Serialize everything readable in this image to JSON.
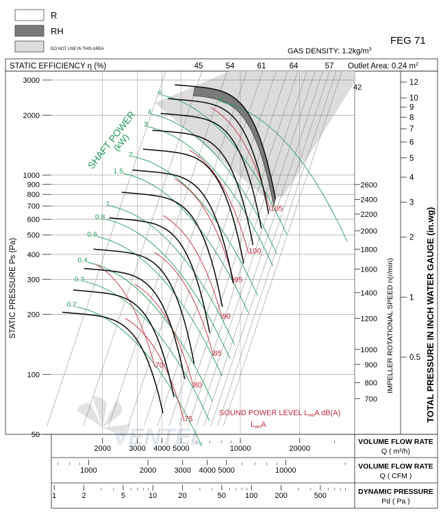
{
  "legend": {
    "r_label": "R",
    "rh_label": "RH",
    "do_not_use_label": "DO NOT USE IN THIS AREA"
  },
  "header": {
    "model": "FEG 71",
    "gas_density": "GAS DENSITY: 1.2kg/m",
    "gas_density_sup": "3",
    "static_efficiency": "STATIC EFFICIENCY η (%)",
    "outlet_area": "Outlet Area: 0.24 m",
    "outlet_area_sup": "2"
  },
  "labels": {
    "shaft_power": "SHAFT POWER",
    "shaft_power_unit": "(kW)",
    "left_axis": "STATIC PRESSURE Ps (Pa)",
    "speed_axis": "IMPELLER ROTATIONAL SPEED n(r/min)",
    "right_axis": "TOTAL PRESSURE IN INCH WATER GAUGE  (in.wg)",
    "sound_power_main": "SOUND POWER LEVEL L",
    "sound_power_sub": "wo",
    "sound_power_end": "A dB(A)",
    "lwa_main": "L",
    "lwa_sub": "wo",
    "lwa_end": "A",
    "watermark": "VENTEL"
  },
  "bottom_scales": {
    "m3h_title": "VOLUME FLOW RATE",
    "m3h_unit": "Q ( m³/h)",
    "cfm_title": "VOLUME FLOW RATE",
    "cfm_unit": "Q ( CFM )",
    "pd_title": "DYNAMIC PRESSURE",
    "pd_unit": "Pd ( Pa )"
  },
  "colors": {
    "curve": "#111111",
    "power": "#1f9a5a",
    "sound": "#c0283a",
    "do_not_use": "#dcdcdc",
    "rh_fill": "#7a7a7a",
    "grid": "#777777"
  },
  "chart_data": {
    "type": "line",
    "x_scale": "log",
    "y_scale": "log",
    "xlim": [
      1100,
      38000
    ],
    "ylim": [
      50,
      3500
    ],
    "flow_m3h_ticks": [
      2000,
      3000,
      4000,
      5000,
      10000,
      20000
    ],
    "flow_m3h_tick_labels": [
      "2000",
      "3000",
      "4000",
      "5000",
      "10000",
      "20000"
    ],
    "flow_cfm_ticks": [
      1000,
      2000,
      3000,
      4000,
      5000,
      10000
    ],
    "flow_cfm_tick_labels": [
      "1000",
      "2000",
      "3000",
      "4000",
      "5000",
      "10000"
    ],
    "dyn_pressure_ticks": [
      1,
      2,
      5,
      10,
      20,
      50,
      100,
      200,
      500
    ],
    "dyn_pressure_tick_labels": [
      "1",
      "2",
      "5",
      "10",
      "20",
      "50",
      "100",
      "200",
      "500"
    ],
    "static_pressure_ticks": [
      50,
      100,
      200,
      300,
      400,
      500,
      600,
      700,
      800,
      900,
      1000,
      2000,
      3000
    ],
    "static_pressure_tick_labels": [
      "50",
      "100",
      "200",
      "300",
      "400",
      "500",
      "600",
      "700",
      "800",
      "900",
      "1000",
      "2000",
      "3000"
    ],
    "inwg_ticks": [
      0.5,
      1,
      2,
      3,
      4,
      5,
      6,
      7,
      8,
      9,
      10,
      12
    ],
    "inwg_tick_labels": [
      "0.5",
      "1",
      "2",
      "3",
      "4",
      "5",
      "6",
      "7",
      "8",
      "9",
      "10",
      "12"
    ],
    "efficiency_top_labels": [
      "45",
      "54",
      "61",
      "64",
      "57"
    ],
    "efficiency_side_label": "42",
    "speed_rpm": [
      700,
      800,
      900,
      1000,
      1200,
      1400,
      1600,
      1800,
      2000,
      2200,
      2400,
      2600
    ],
    "speed_labels": [
      "700",
      "800",
      "900",
      "1000",
      "1200",
      "1400",
      "1600",
      "1800",
      "2000",
      "2200",
      "2400",
      "2600"
    ],
    "curve_end_pressure_pa": [
      64,
      77,
      95,
      113,
      162,
      218,
      286,
      360,
      445,
      540,
      640,
      760
    ],
    "curve_base_pressure": [
      205,
      265,
      340,
      425,
      610,
      820,
      1060,
      1350,
      1680,
      2040,
      2420,
      2840
    ],
    "sound_power_labels": [
      "70",
      "75",
      "80",
      "85",
      "90",
      "95",
      "100",
      "105"
    ],
    "sound_power_label_points": [
      [
        3700,
        108
      ],
      [
        5200,
        58
      ],
      [
        5800,
        86
      ],
      [
        7300,
        124
      ],
      [
        8100,
        190
      ],
      [
        9300,
        290
      ],
      [
        11000,
        405
      ],
      [
        14200,
        660
      ]
    ],
    "shaft_power_labels": [
      "0.2",
      "0.3",
      "0.4",
      "0.6",
      "0.8",
      "1",
      "1.5",
      "2",
      "3",
      "4",
      "6",
      "8"
    ],
    "shaft_power_label_points": [
      [
        1480,
        218
      ],
      [
        1620,
        292
      ],
      [
        1680,
        365
      ],
      [
        1880,
        490
      ],
      [
        2060,
        600
      ],
      [
        2180,
        700
      ],
      [
        2550,
        1020
      ],
      [
        2850,
        1240
      ],
      [
        3400,
        1750
      ],
      [
        3550,
        2020
      ],
      [
        4000,
        2520
      ],
      [
        8100,
        2320
      ]
    ]
  }
}
